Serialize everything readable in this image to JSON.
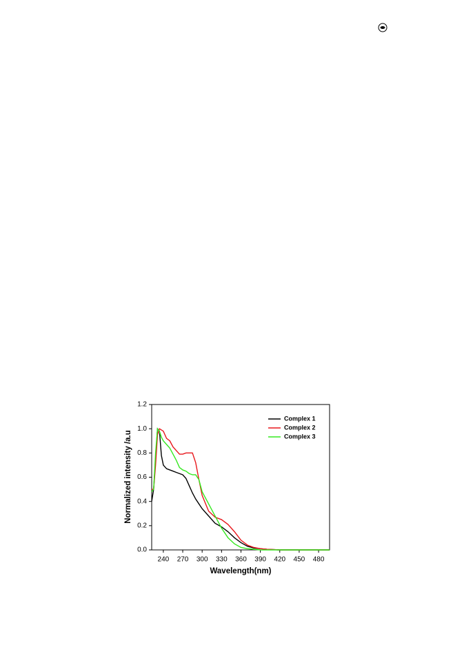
{
  "chart_data": {
    "type": "line",
    "xlabel": "Wavelength(nm)",
    "ylabel": "Normalized intensity /a.u",
    "x": [
      222,
      225,
      228,
      231,
      234,
      237,
      240,
      245,
      250,
      255,
      260,
      265,
      270,
      275,
      280,
      285,
      290,
      295,
      300,
      310,
      320,
      330,
      340,
      350,
      360,
      370,
      380,
      390,
      400,
      420,
      450,
      497
    ],
    "series": [
      {
        "name": "Complex 1",
        "color": "#000000",
        "values": [
          0.4,
          0.5,
          0.75,
          1.0,
          0.98,
          0.78,
          0.7,
          0.67,
          0.66,
          0.65,
          0.64,
          0.63,
          0.62,
          0.59,
          0.53,
          0.47,
          0.42,
          0.38,
          0.34,
          0.28,
          0.22,
          0.19,
          0.15,
          0.1,
          0.06,
          0.03,
          0.015,
          0.01,
          0.005,
          0,
          0,
          0
        ]
      },
      {
        "name": "Complex 2",
        "color": "#e8161b",
        "values": [
          0.5,
          0.5,
          0.7,
          0.95,
          1.0,
          0.99,
          0.98,
          0.92,
          0.9,
          0.85,
          0.82,
          0.79,
          0.79,
          0.8,
          0.8,
          0.8,
          0.72,
          0.58,
          0.45,
          0.32,
          0.27,
          0.25,
          0.21,
          0.15,
          0.08,
          0.04,
          0.02,
          0.01,
          0.005,
          0,
          0,
          0
        ]
      },
      {
        "name": "Complex 3",
        "color": "#33e81e",
        "values": [
          0.48,
          0.5,
          0.8,
          1.0,
          0.98,
          0.93,
          0.9,
          0.87,
          0.84,
          0.79,
          0.74,
          0.68,
          0.66,
          0.65,
          0.63,
          0.62,
          0.62,
          0.58,
          0.48,
          0.38,
          0.28,
          0.18,
          0.1,
          0.05,
          0.02,
          0.01,
          0.005,
          0,
          0,
          0,
          0,
          0
        ]
      }
    ],
    "xlim": [
      222,
      497
    ],
    "xticks": [
      240,
      270,
      300,
      330,
      360,
      390,
      420,
      450,
      480
    ],
    "ylim": [
      0,
      1.2
    ],
    "yticks": [
      {
        "value": 0,
        "label": "0.0"
      },
      0.2,
      0.4,
      0.6,
      0.8,
      {
        "value": 1,
        "label": "1.0"
      },
      1.2
    ],
    "legend": "upper right"
  }
}
